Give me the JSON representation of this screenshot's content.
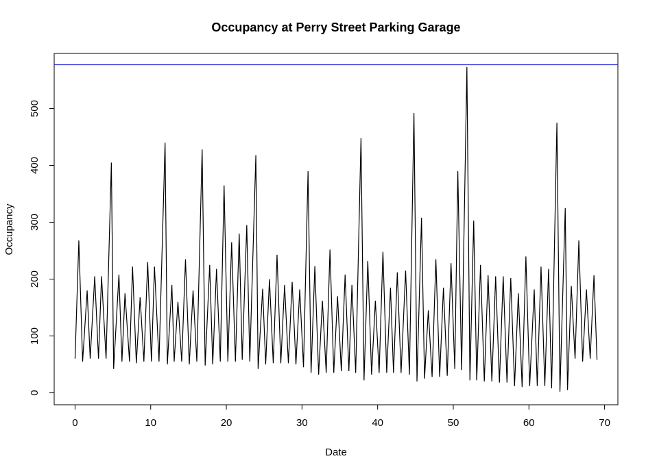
{
  "chart_data": {
    "type": "line",
    "title": "Occupancy at Perry Street Parking Garage",
    "x_label": "Date",
    "y_label": "Occupancy",
    "x": [
      0,
      0.5,
      1,
      1.6,
      2,
      2.6,
      3.1,
      3.5,
      4.1,
      4.8,
      5.1,
      5.8,
      6.2,
      6.6,
      7.2,
      7.6,
      8.1,
      8.6,
      9.1,
      9.6,
      10.1,
      10.5,
      11.1,
      11.9,
      12.2,
      12.8,
      13.1,
      13.6,
      14.1,
      14.6,
      15.1,
      15.6,
      16.1,
      16.8,
      17.2,
      17.8,
      18.2,
      18.7,
      19.2,
      19.7,
      20.2,
      20.7,
      21.2,
      21.7,
      22.1,
      22.7,
      23.1,
      23.9,
      24.2,
      24.8,
      25.2,
      25.7,
      26.2,
      26.7,
      27.2,
      27.7,
      28.2,
      28.7,
      29.2,
      29.7,
      30.2,
      30.8,
      31.2,
      31.7,
      32.2,
      32.7,
      33.2,
      33.7,
      34.2,
      34.7,
      35.2,
      35.7,
      36.2,
      36.6,
      37.1,
      37.8,
      38.2,
      38.7,
      39.2,
      39.7,
      40.2,
      40.7,
      41.2,
      41.7,
      42.1,
      42.6,
      43.1,
      43.7,
      44.2,
      44.8,
      45.2,
      45.8,
      46.2,
      46.7,
      47.2,
      47.7,
      48.2,
      48.7,
      49.2,
      49.7,
      50.2,
      50.6,
      51.1,
      51.8,
      52.2,
      52.7,
      53.1,
      53.6,
      54.1,
      54.6,
      55.1,
      55.6,
      56.1,
      56.6,
      57.1,
      57.6,
      58.1,
      58.6,
      59.1,
      59.6,
      60.1,
      60.7,
      61.1,
      61.6,
      62.1,
      62.6,
      63,
      63.7,
      64.1,
      64.8,
      65.1,
      65.6,
      66.1,
      66.6,
      67.1,
      67.6,
      68.1,
      68.6,
      69
    ],
    "values": [
      60,
      268,
      55,
      180,
      60,
      205,
      60,
      205,
      60,
      405,
      42,
      208,
      55,
      175,
      55,
      222,
      52,
      168,
      55,
      230,
      55,
      222,
      55,
      440,
      50,
      190,
      55,
      160,
      55,
      235,
      50,
      180,
      55,
      428,
      48,
      225,
      50,
      218,
      55,
      365,
      55,
      265,
      55,
      280,
      58,
      295,
      55,
      418,
      42,
      183,
      50,
      200,
      52,
      243,
      52,
      190,
      52,
      195,
      50,
      182,
      45,
      390,
      35,
      223,
      32,
      162,
      35,
      252,
      35,
      170,
      38,
      208,
      38,
      190,
      35,
      448,
      22,
      232,
      32,
      162,
      35,
      248,
      35,
      185,
      35,
      212,
      35,
      215,
      32,
      492,
      20,
      308,
      25,
      145,
      28,
      235,
      28,
      185,
      30,
      228,
      42,
      390,
      40,
      573,
      22,
      303,
      22,
      225,
      20,
      207,
      20,
      205,
      18,
      205,
      18,
      202,
      12,
      175,
      10,
      240,
      12,
      182,
      12,
      222,
      12,
      218,
      8,
      475,
      2,
      325,
      5,
      188,
      60,
      268,
      55,
      182,
      60,
      207,
      58
    ],
    "color": "#000000",
    "hline": {
      "value": 577,
      "color": "#0000cd"
    },
    "xlim": [
      -2.76,
      71.76
    ],
    "ylim": [
      -21,
      597
    ],
    "xticks": [
      0,
      10,
      20,
      30,
      40,
      50,
      60,
      70
    ],
    "yticks": [
      0,
      100,
      200,
      300,
      400,
      500
    ],
    "grid": false
  }
}
